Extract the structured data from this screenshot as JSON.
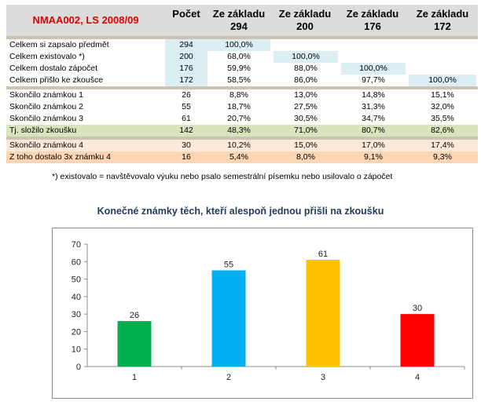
{
  "table": {
    "title": "NMAA002, LS 2008/09",
    "headers": [
      {
        "line1": "Počet",
        "line2": ""
      },
      {
        "line1": "Ze základu",
        "line2": "294"
      },
      {
        "line1": "Ze základu",
        "line2": "200"
      },
      {
        "line1": "Ze základu",
        "line2": "176"
      },
      {
        "line1": "Ze základu",
        "line2": "172"
      }
    ],
    "rows": [
      {
        "label": "Celkem si zapsalo předmět",
        "cells": [
          "294",
          "100,0%",
          "",
          "",
          ""
        ]
      },
      {
        "label": "Celkem existovalo  *)",
        "cells": [
          "200",
          "68,0%",
          "100,0%",
          "",
          ""
        ]
      },
      {
        "label": "Celkem dostalo zápočet",
        "cells": [
          "176",
          "59,9%",
          "88,0%",
          "100,0%",
          ""
        ]
      },
      {
        "label": "Celkem přišlo ke zkoušce",
        "cells": [
          "172",
          "58,5%",
          "86,0%",
          "97,7%",
          "100,0%"
        ]
      },
      {
        "label": "Skončilo známkou 1",
        "cells": [
          "26",
          "8,8%",
          "13,0%",
          "14,8%",
          "15,1%"
        ]
      },
      {
        "label": "Skončilo známkou 2",
        "cells": [
          "55",
          "18,7%",
          "27,5%",
          "31,3%",
          "32,0%"
        ]
      },
      {
        "label": "Skončilo známkou 3",
        "cells": [
          "61",
          "20,7%",
          "30,5%",
          "34,7%",
          "35,5%"
        ]
      },
      {
        "label": "Tj. složilo zkoušku",
        "cells": [
          "142",
          "48,3%",
          "71,0%",
          "80,7%",
          "82,6%"
        ]
      },
      {
        "label": "Skončilo známkou 4",
        "cells": [
          "30",
          "10,2%",
          "15,0%",
          "17,0%",
          "17,4%"
        ]
      },
      {
        "label": "Z toho dostalo 3x známku 4",
        "cells": [
          "16",
          "5,4%",
          "8,0%",
          "9,1%",
          "9,3%"
        ]
      }
    ],
    "footnote": "*) existovalo = navštěvovalo výuku nebo psalo semestrální písemku nebo usilovalo o zápočet",
    "colors": {
      "title_red": "#e00000",
      "header_bg": "#dcdcdc",
      "highlight_blue": "#daeef3",
      "passed_green": "#d8e4bc",
      "fail_rose": "#fde9d9",
      "fail_peach": "#fcd5b4"
    }
  },
  "chart_data": {
    "type": "bar",
    "title": "Konečné známky těch, kteří alespoň jednou přišli na zkoušku",
    "categories": [
      "1",
      "2",
      "3",
      "4"
    ],
    "values": [
      26,
      55,
      61,
      30
    ],
    "data_labels": [
      "26",
      "55",
      "61",
      "30"
    ],
    "colors": [
      "#00b050",
      "#00b0f0",
      "#ffc000",
      "#ff0000"
    ],
    "ylim": [
      0,
      70
    ],
    "yticks": [
      0,
      10,
      20,
      30,
      40,
      50,
      60,
      70
    ],
    "grid": false,
    "legend": "none"
  }
}
